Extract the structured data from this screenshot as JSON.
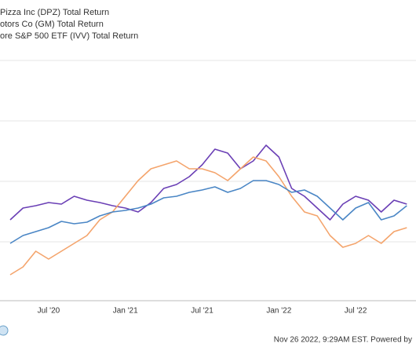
{
  "chart_data": {
    "type": "line",
    "legend": [
      "Pizza Inc (DPZ) Total Return",
      "otors Co (GM) Total Return",
      "ore S&P 500 ETF (IVV) Total Return"
    ],
    "categories": [
      null,
      null,
      null,
      "Jul '20",
      null,
      null,
      null,
      null,
      null,
      "Jan '21",
      null,
      null,
      null,
      null,
      null,
      "Jul '21",
      null,
      null,
      null,
      null,
      null,
      "Jan '22",
      null,
      null,
      null,
      null,
      null,
      "Jul '22",
      null,
      null,
      null,
      null
    ],
    "ylim": [
      0,
      400
    ],
    "series": [
      {
        "name": "Pizza Inc (DPZ) Total Return",
        "color": "#6a3fb5",
        "values": [
          120,
          135,
          138,
          142,
          140,
          150,
          145,
          142,
          138,
          135,
          130,
          142,
          160,
          165,
          175,
          190,
          210,
          205,
          185,
          195,
          215,
          200,
          160,
          150,
          135,
          120,
          140,
          150,
          145,
          130,
          145,
          140
        ]
      },
      {
        "name": "otors Co (GM) Total Return",
        "color": "#f4a46c",
        "values": [
          50,
          60,
          80,
          70,
          80,
          90,
          100,
          120,
          130,
          150,
          170,
          185,
          190,
          195,
          185,
          185,
          180,
          170,
          185,
          200,
          195,
          175,
          150,
          130,
          125,
          100,
          85,
          90,
          100,
          90,
          105,
          110
        ]
      },
      {
        "name": "ore S&P 500 ETF (IVV) Total Return",
        "color": "#4a86c5",
        "values": [
          90,
          100,
          105,
          110,
          118,
          115,
          117,
          125,
          130,
          132,
          135,
          140,
          148,
          150,
          155,
          158,
          162,
          155,
          160,
          170,
          170,
          165,
          155,
          158,
          150,
          135,
          120,
          135,
          142,
          120,
          125,
          138
        ]
      }
    ],
    "footer": "Nov 26 2022, 9:29AM EST. Powered by"
  }
}
